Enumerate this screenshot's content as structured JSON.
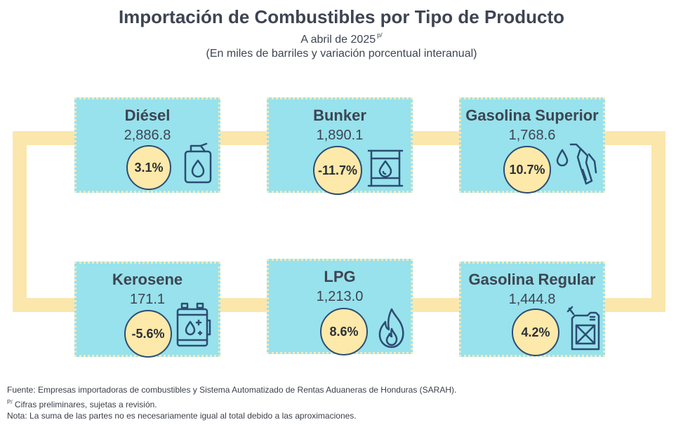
{
  "header": {
    "title": "Importación de Combustibles por Tipo de Producto",
    "subtitle": "A abril de 2025",
    "subtitle_mark": "p/",
    "subtitle2": "(En miles de barriles y variación porcentual interanual)"
  },
  "products": [
    {
      "name": "Diésel",
      "value": "2,886.8",
      "change": "3.1%",
      "icon": "fuel-jerrycan-icon"
    },
    {
      "name": "Bunker",
      "value": "1,890.1",
      "change": "-11.7%",
      "icon": "oil-barrel-icon"
    },
    {
      "name": "Gasolina Superior",
      "value": "1,768.6",
      "change": "10.7%",
      "icon": "fuel-nozzle-icon"
    },
    {
      "name": "Kerosene",
      "value": "171.1",
      "change": "-5.6%",
      "icon": "kerosene-container-icon"
    },
    {
      "name": "LPG",
      "value": "1,213.0",
      "change": "8.6%",
      "icon": "flame-icon"
    },
    {
      "name": "Gasolina Regular",
      "value": "1,444.8",
      "change": "4.2%",
      "icon": "gas-can-icon"
    }
  ],
  "footer": {
    "source": "Fuente: Empresas importadoras de combustibles y Sistema Automatizado de Rentas Aduaneras de Honduras (SARAH).",
    "prelim_mark": "P/",
    "prelim_text": " Cifras preliminares, sujetas a revisión.",
    "note": "Nota: La suma de las partes no es necesariamente igual al total debido a las aproximaciones."
  },
  "colors": {
    "card": "#97e2ec",
    "badge": "#fde9a9",
    "connector": "#fbe6ac",
    "icon_stroke": "#2c4c72"
  }
}
